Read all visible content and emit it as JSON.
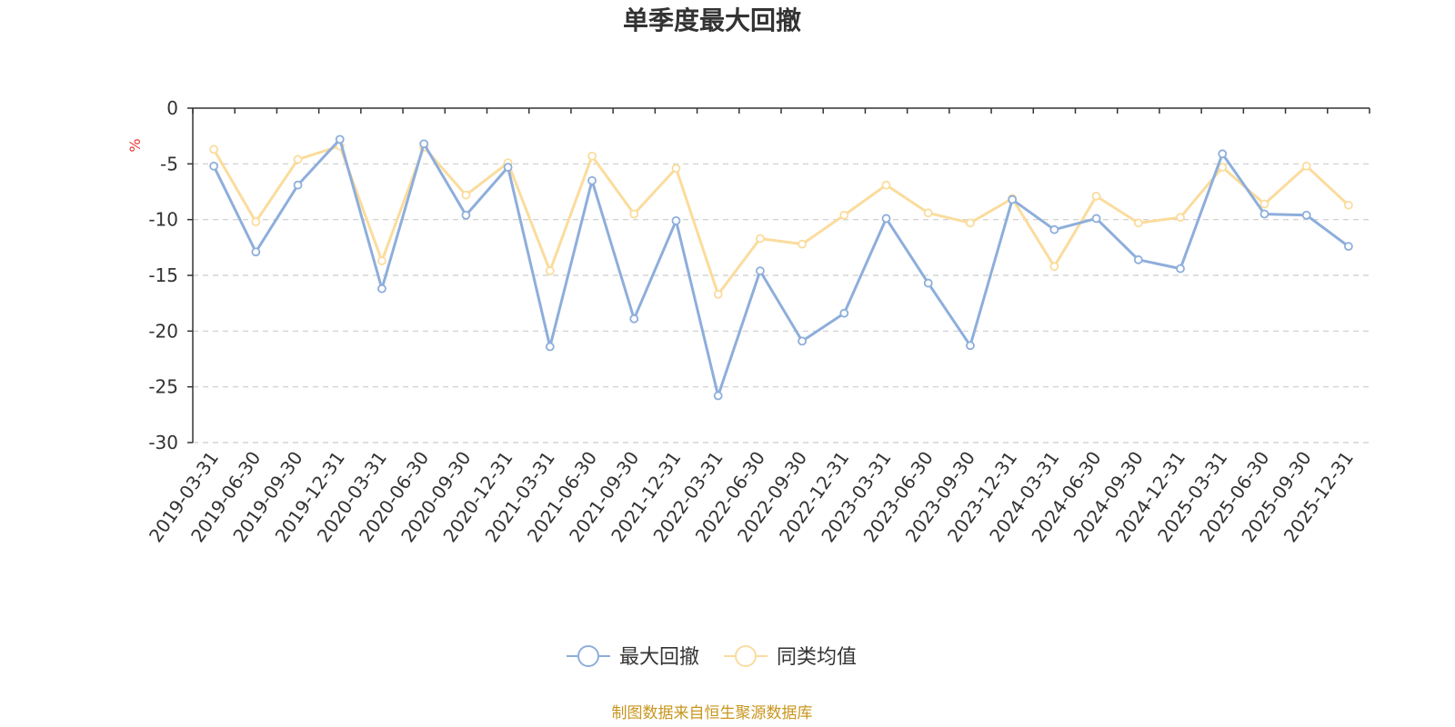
{
  "chart_data": {
    "type": "line",
    "title": "单季度最大回撤",
    "ylabel": "%",
    "ylim": [
      -30,
      0
    ],
    "yticks": [
      0,
      -5,
      -10,
      -15,
      -20,
      -25,
      -30
    ],
    "grid": true,
    "legend_position": "bottom",
    "categories": [
      "2019-03-31",
      "2019-06-30",
      "2019-09-30",
      "2019-12-31",
      "2020-03-31",
      "2020-06-30",
      "2020-09-30",
      "2020-12-31",
      "2021-03-31",
      "2021-06-30",
      "2021-09-30",
      "2021-12-31",
      "2022-03-31",
      "2022-06-30",
      "2022-09-30",
      "2022-12-31",
      "2023-03-31",
      "2023-06-30",
      "2023-09-30",
      "2023-12-31",
      "2024-03-31",
      "2024-06-30",
      "2024-09-30",
      "2024-12-31",
      "2025-03-31",
      "2025-06-30",
      "2025-09-30",
      "2025-12-31"
    ],
    "series": [
      {
        "name": "最大回撤",
        "color": "#8eaedb",
        "values": [
          -5.2,
          -12.9,
          -6.9,
          -2.8,
          -16.2,
          -3.2,
          -9.6,
          -5.3,
          -21.4,
          -6.5,
          -18.9,
          -10.1,
          -25.8,
          -14.6,
          -20.9,
          -18.4,
          -9.9,
          -15.7,
          -21.3,
          -8.2,
          -10.9,
          -9.9,
          -13.6,
          -14.4,
          -4.1,
          -9.5,
          -9.6,
          -12.4
        ]
      },
      {
        "name": "同类均值",
        "color": "#fbdc9d",
        "values": [
          -3.7,
          -10.2,
          -4.6,
          -3.4,
          -13.7,
          -3.5,
          -7.8,
          -4.9,
          -14.6,
          -4.3,
          -9.5,
          -5.4,
          -16.7,
          -11.7,
          -12.2,
          -9.6,
          -6.9,
          -9.4,
          -10.3,
          -8.1,
          -14.2,
          -7.9,
          -10.3,
          -9.8,
          -5.3,
          -8.6,
          -5.2,
          -8.7
        ]
      }
    ],
    "source": "制图数据来自恒生聚源数据库"
  }
}
